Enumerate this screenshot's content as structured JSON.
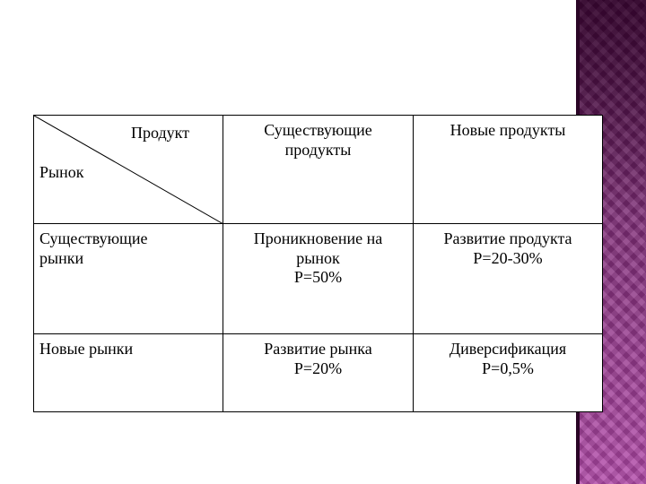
{
  "slide": {
    "accent_color": "#7a2a72"
  },
  "matrix": {
    "corner": {
      "product_label": "Продукт",
      "market_label": "Рынок"
    },
    "column_headers": [
      {
        "lines": [
          "Существующие",
          "продукты"
        ]
      },
      {
        "lines": [
          "Новые продукты"
        ]
      }
    ],
    "rows": [
      {
        "header_lines": [
          "Существующие",
          "рынки"
        ],
        "cells": [
          {
            "lines": [
              "Проникновение на",
              "рынок",
              "P=50%"
            ]
          },
          {
            "lines": [
              "Развитие продукта",
              "P=20-30%"
            ]
          }
        ]
      },
      {
        "header_lines": [
          "Новые рынки"
        ],
        "cells": [
          {
            "lines": [
              "Развитие рынка",
              "P=20%"
            ]
          },
          {
            "lines": [
              "Диверсификация",
              "P=0,5%"
            ]
          }
        ]
      }
    ]
  }
}
